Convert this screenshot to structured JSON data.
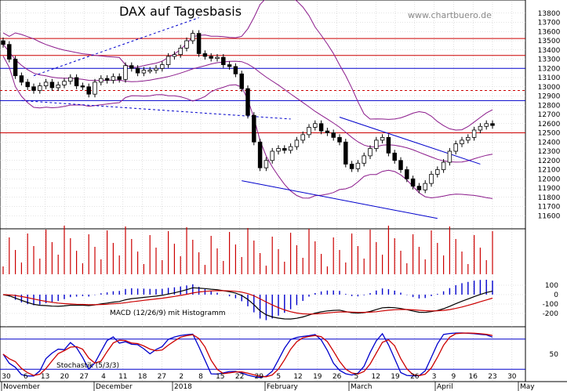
{
  "chart_data": [
    {
      "type": "candlestick",
      "title": "DAX auf Tagesbasis",
      "watermark": "www.chartbuero.de",
      "ylim": [
        11500,
        13900
      ],
      "y_ticks": [
        11600,
        11700,
        11800,
        11900,
        12000,
        12100,
        12200,
        12300,
        12400,
        12500,
        12600,
        12700,
        12800,
        12900,
        13000,
        13100,
        13200,
        13300,
        13400,
        13500,
        13600,
        13700,
        13800
      ],
      "x_tick_labels": [
        "30",
        "6",
        "13",
        "20",
        "27",
        "4",
        "11",
        "18",
        "27",
        "2",
        "8",
        "15",
        "22",
        "29",
        "5",
        "12",
        "19",
        "26",
        "5",
        "12",
        "19",
        "26",
        "3",
        "9",
        "16",
        "23",
        "30"
      ],
      "month_labels": [
        "November",
        "December",
        "2018",
        "February",
        "March",
        "April",
        "May"
      ],
      "colors": {
        "candle": "#000000",
        "bollinger": "#8b1a8b",
        "trend": "#0000cc",
        "resistance": "#cc0000"
      },
      "horizontal_lines": [
        {
          "value": 13525,
          "color": "#cc0000",
          "style": "solid"
        },
        {
          "value": 13340,
          "color": "#cc0000",
          "style": "solid"
        },
        {
          "value": 13200,
          "color": "#0000cc",
          "style": "solid"
        },
        {
          "value": 12960,
          "color": "#cc0000",
          "style": "dashed"
        },
        {
          "value": 12850,
          "color": "#0000cc",
          "style": "solid"
        },
        {
          "value": 12500,
          "color": "#cc0000",
          "style": "solid"
        }
      ],
      "close": [
        13460,
        13300,
        13120,
        13050,
        13000,
        12960,
        13010,
        13050,
        12990,
        13020,
        13060,
        13100,
        13010,
        13000,
        12920,
        13050,
        13090,
        13070,
        13110,
        13080,
        13230,
        13200,
        13150,
        13180,
        13180,
        13200,
        13240,
        13330,
        13350,
        13420,
        13500,
        13580,
        13360,
        13330,
        13310,
        13320,
        13240,
        13220,
        13140,
        12980,
        12690,
        12400,
        12120,
        12200,
        12300,
        12330,
        12310,
        12350,
        12420,
        12480,
        12560,
        12600,
        12520,
        12500,
        12450,
        12400,
        12160,
        12110,
        12170,
        12250,
        12330,
        12420,
        12450,
        12280,
        12200,
        12100,
        12000,
        11920,
        11880,
        11950,
        12050,
        12100,
        12180,
        12300,
        12380,
        12420,
        12450,
        12530,
        12570,
        12600,
        12580
      ]
    },
    {
      "type": "bar+line",
      "title": "MACD (12/26/9) mit Histogramm",
      "ylim": [
        -300,
        200
      ],
      "y_ticks": [
        100,
        0,
        -100,
        -200
      ]
    },
    {
      "type": "line",
      "title": "Stochastik (5/3/3)",
      "ylim": [
        0,
        100
      ],
      "y_ticks": [
        50
      ]
    }
  ]
}
